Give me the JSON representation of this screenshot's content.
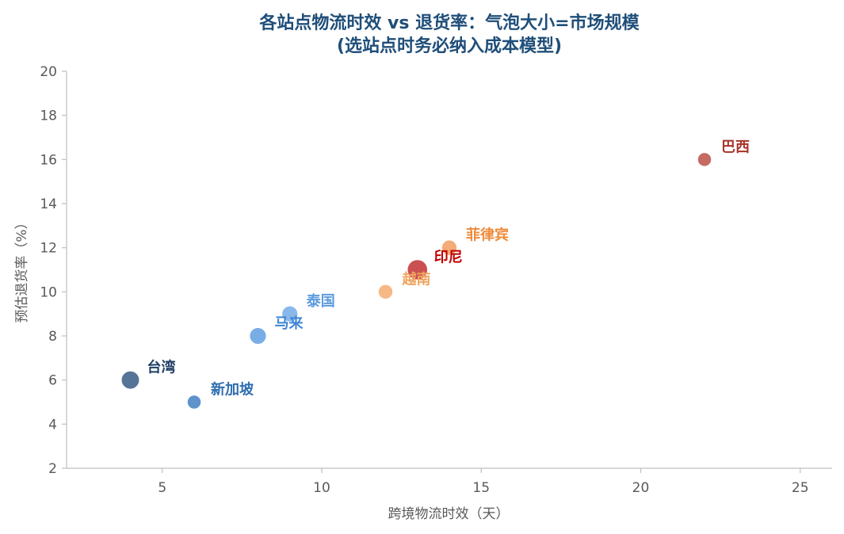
{
  "chart_data": {
    "type": "scatter",
    "title": [
      "各站点物流时效 vs 退货率：气泡大小=市场规模",
      "(选站点时务必纳入成本模型)"
    ],
    "xlabel": "跨境物流时效（天）",
    "ylabel": "预估退货率（%）",
    "xlim": [
      2,
      26
    ],
    "ylim": [
      2,
      20
    ],
    "xticks": [
      5,
      10,
      15,
      20,
      25
    ],
    "yticks": [
      2,
      4,
      6,
      8,
      10,
      12,
      14,
      16,
      18,
      20
    ],
    "grid": false,
    "points": [
      {
        "label": "台湾",
        "x": 4,
        "y": 6,
        "size": 1.3,
        "color": "#2e5780",
        "label_color": "#1f3e66"
      },
      {
        "label": "新加坡",
        "x": 6,
        "y": 5,
        "size": 1.0,
        "color": "#3a7bbf",
        "label_color": "#2f6db0"
      },
      {
        "label": "马来",
        "x": 8,
        "y": 8,
        "size": 1.2,
        "color": "#5b9bdf",
        "label_color": "#3f86d4"
      },
      {
        "label": "泰国",
        "x": 9,
        "y": 9,
        "size": 1.15,
        "color": "#6fa8e6",
        "label_color": "#5b9bdf"
      },
      {
        "label": "越南",
        "x": 12,
        "y": 10,
        "size": 1.05,
        "color": "#f4a86a",
        "label_color": "#f0a45e"
      },
      {
        "label": "印尼",
        "x": 13,
        "y": 11,
        "size": 1.45,
        "color": "#c0292b",
        "label_color": "#c00000"
      },
      {
        "label": "菲律宾",
        "x": 14,
        "y": 12,
        "size": 1.1,
        "color": "#f39858",
        "label_color": "#ee8a3a"
      },
      {
        "label": "巴西",
        "x": 22,
        "y": 16,
        "size": 1.0,
        "color": "#b84a40",
        "label_color": "#a8322a"
      }
    ]
  }
}
